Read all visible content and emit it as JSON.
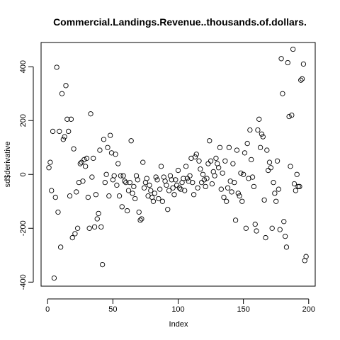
{
  "chart_data": {
    "type": "scatter",
    "title": "Commercial.Landings.Revenue..thousands.of.dollars.",
    "xlabel": "Index",
    "ylabel": "sd$derivative",
    "xlim": [
      -5,
      205
    ],
    "ylim": [
      -415,
      490
    ],
    "x_ticks": [
      0,
      50,
      100,
      150,
      200
    ],
    "y_ticks": [
      -400,
      -200,
      0,
      200,
      400
    ],
    "series": [
      {
        "points": [
          [
            1,
            25
          ],
          [
            2,
            45
          ],
          [
            3,
            -60
          ],
          [
            4,
            160
          ],
          [
            5,
            -385
          ],
          [
            6,
            -85
          ],
          [
            7,
            398
          ],
          [
            8,
            -140
          ],
          [
            9,
            160
          ],
          [
            10,
            -270
          ],
          [
            11,
            300
          ],
          [
            12,
            130
          ],
          [
            13,
            140
          ],
          [
            14,
            330
          ],
          [
            15,
            205
          ],
          [
            16,
            160
          ],
          [
            17,
            -80
          ],
          [
            18,
            205
          ],
          [
            19,
            -235
          ],
          [
            20,
            95
          ],
          [
            21,
            -220
          ],
          [
            22,
            -65
          ],
          [
            23,
            -200
          ],
          [
            24,
            -30
          ],
          [
            25,
            40
          ],
          [
            26,
            45
          ],
          [
            27,
            -25
          ],
          [
            28,
            55
          ],
          [
            29,
            30
          ],
          [
            30,
            60
          ],
          [
            31,
            -85
          ],
          [
            32,
            -200
          ],
          [
            33,
            225
          ],
          [
            34,
            -10
          ],
          [
            35,
            60
          ],
          [
            36,
            -195
          ],
          [
            37,
            -75
          ],
          [
            38,
            -165
          ],
          [
            39,
            -145
          ],
          [
            40,
            90
          ],
          [
            41,
            -195
          ],
          [
            42,
            -335
          ],
          [
            43,
            130
          ],
          [
            44,
            -30
          ],
          [
            45,
            0
          ],
          [
            46,
            100
          ],
          [
            47,
            -80
          ],
          [
            48,
            145
          ],
          [
            49,
            80
          ],
          [
            50,
            -20
          ],
          [
            51,
            -5
          ],
          [
            52,
            75
          ],
          [
            53,
            -40
          ],
          [
            54,
            40
          ],
          [
            55,
            -80
          ],
          [
            56,
            -5
          ],
          [
            57,
            -120
          ],
          [
            58,
            -5
          ],
          [
            59,
            -25
          ],
          [
            60,
            -30
          ],
          [
            61,
            -135
          ],
          [
            62,
            -60
          ],
          [
            63,
            -30
          ],
          [
            64,
            125
          ],
          [
            65,
            -70
          ],
          [
            66,
            -45
          ],
          [
            67,
            -90
          ],
          [
            68,
            -5
          ],
          [
            69,
            -20
          ],
          [
            70,
            -140
          ],
          [
            71,
            -170
          ],
          [
            72,
            -165
          ],
          [
            73,
            45
          ],
          [
            74,
            -50
          ],
          [
            75,
            -30
          ],
          [
            76,
            -15
          ],
          [
            77,
            -80
          ],
          [
            78,
            -40
          ],
          [
            79,
            -60
          ],
          [
            80,
            -85
          ],
          [
            81,
            -100
          ],
          [
            82,
            -70
          ],
          [
            83,
            -10
          ],
          [
            84,
            -20
          ],
          [
            85,
            -90
          ],
          [
            86,
            -55
          ],
          [
            87,
            30
          ],
          [
            88,
            -100
          ],
          [
            89,
            -10
          ],
          [
            90,
            -25
          ],
          [
            91,
            -40
          ],
          [
            92,
            -130
          ],
          [
            93,
            -60
          ],
          [
            94,
            -5
          ],
          [
            95,
            -20
          ],
          [
            96,
            -50
          ],
          [
            97,
            -75
          ],
          [
            98,
            -20
          ],
          [
            99,
            -40
          ],
          [
            100,
            15
          ],
          [
            101,
            -50
          ],
          [
            102,
            -55
          ],
          [
            103,
            -30
          ],
          [
            104,
            -15
          ],
          [
            105,
            -60
          ],
          [
            106,
            30
          ],
          [
            107,
            -15
          ],
          [
            108,
            -25
          ],
          [
            109,
            -5
          ],
          [
            110,
            60
          ],
          [
            111,
            -30
          ],
          [
            112,
            -75
          ],
          [
            113,
            65
          ],
          [
            114,
            75
          ],
          [
            115,
            -50
          ],
          [
            116,
            50
          ],
          [
            117,
            20
          ],
          [
            118,
            -30
          ],
          [
            119,
            0
          ],
          [
            120,
            -20
          ],
          [
            121,
            -45
          ],
          [
            122,
            -15
          ],
          [
            123,
            40
          ],
          [
            124,
            125
          ],
          [
            125,
            50
          ],
          [
            126,
            -35
          ],
          [
            127,
            10
          ],
          [
            128,
            -5
          ],
          [
            129,
            60
          ],
          [
            130,
            40
          ],
          [
            131,
            25
          ],
          [
            132,
            100
          ],
          [
            133,
            -55
          ],
          [
            134,
            5
          ],
          [
            135,
            -85
          ],
          [
            136,
            50
          ],
          [
            137,
            -100
          ],
          [
            138,
            -50
          ],
          [
            139,
            100
          ],
          [
            140,
            -25
          ],
          [
            141,
            -65
          ],
          [
            142,
            40
          ],
          [
            143,
            -30
          ],
          [
            144,
            -170
          ],
          [
            145,
            90
          ],
          [
            146,
            -70
          ],
          [
            147,
            -80
          ],
          [
            148,
            5
          ],
          [
            149,
            -100
          ],
          [
            150,
            0
          ],
          [
            151,
            80
          ],
          [
            152,
            -200
          ],
          [
            153,
            115
          ],
          [
            154,
            -15
          ],
          [
            155,
            165
          ],
          [
            156,
            55
          ],
          [
            157,
            -10
          ],
          [
            158,
            -45
          ],
          [
            159,
            -185
          ],
          [
            160,
            -210
          ],
          [
            161,
            165
          ],
          [
            162,
            205
          ],
          [
            163,
            100
          ],
          [
            164,
            150
          ],
          [
            165,
            140
          ],
          [
            166,
            -95
          ],
          [
            167,
            -235
          ],
          [
            168,
            90
          ],
          [
            169,
            15
          ],
          [
            170,
            45
          ],
          [
            171,
            25
          ],
          [
            172,
            -200
          ],
          [
            173,
            -30
          ],
          [
            174,
            -70
          ],
          [
            175,
            -100
          ],
          [
            176,
            50
          ],
          [
            177,
            -55
          ],
          [
            178,
            -205
          ],
          [
            179,
            430
          ],
          [
            180,
            300
          ],
          [
            181,
            -175
          ],
          [
            182,
            -230
          ],
          [
            183,
            -270
          ],
          [
            184,
            415
          ],
          [
            185,
            215
          ],
          [
            186,
            30
          ],
          [
            187,
            220
          ],
          [
            188,
            465
          ],
          [
            189,
            -35
          ],
          [
            190,
            -60
          ],
          [
            191,
            0
          ],
          [
            192,
            -45
          ],
          [
            193,
            -45
          ],
          [
            194,
            350
          ],
          [
            195,
            355
          ],
          [
            196,
            410
          ],
          [
            197,
            -320
          ],
          [
            198,
            -305
          ]
        ]
      }
    ],
    "grid": false,
    "legend": "none"
  }
}
